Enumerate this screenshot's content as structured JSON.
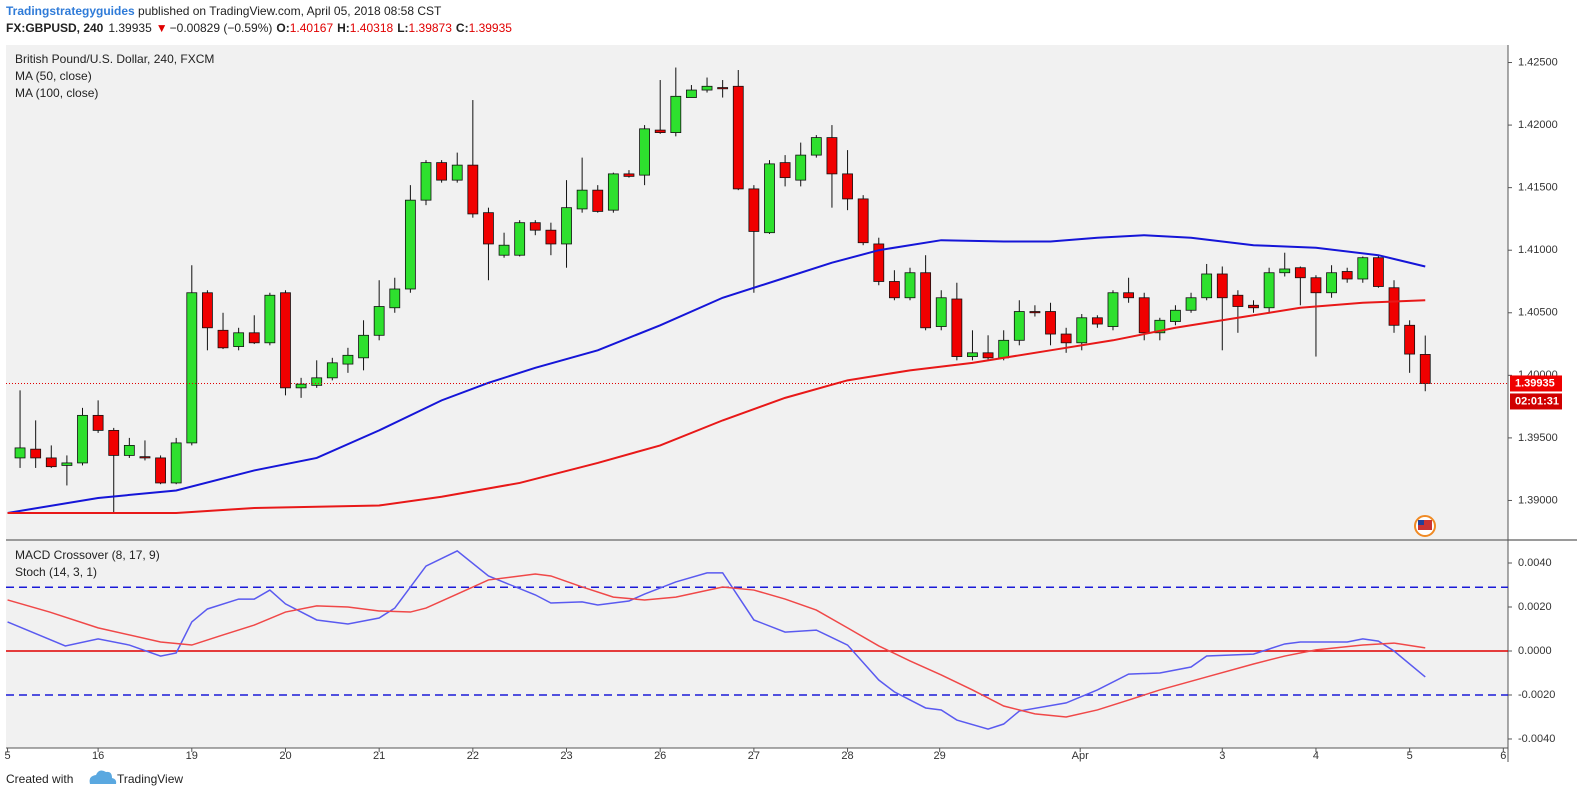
{
  "header": {
    "author": "Tradingstrategyguides",
    "published": " published on TradingView.com, April 05, 2018 08:58 CST",
    "symbol": "FX:GBPUSD, 240",
    "last": "1.39935",
    "arrow": "▼",
    "change": "−0.00829 (−0.59%)",
    "o_label": "O:",
    "o": "1.40167",
    "h_label": "H:",
    "h": "1.40318",
    "l_label": "L:",
    "l": "1.39873",
    "c_label": "C:",
    "c": "1.39935"
  },
  "footer": {
    "created": "Created with",
    "brand": "TradingView"
  },
  "chart_data": [
    {
      "type": "candlestick",
      "title": "British Pound/U.S. Dollar, 240, FXCM",
      "up_color": "#2ee02e",
      "down_color": "#f00000",
      "open": [
        1.3934,
        1.3941,
        1.3934,
        1.3928,
        1.393,
        1.3968,
        1.3956,
        1.3936,
        1.3935,
        1.3934,
        1.3914,
        1.3946,
        1.4066,
        1.4036,
        1.4023,
        1.4034,
        1.4026,
        1.4066,
        1.399,
        1.3992,
        1.3998,
        1.4009,
        1.4014,
        1.4032,
        1.4054,
        1.4069,
        1.414,
        1.417,
        1.4156,
        1.4168,
        1.413,
        1.4096,
        1.4096,
        1.4122,
        1.4116,
        1.4105,
        1.4133,
        1.4148,
        1.4132,
        1.4161,
        1.416,
        1.4196,
        1.4194,
        1.4222,
        1.4228,
        1.423,
        1.4231,
        1.4149,
        1.4114,
        1.417,
        1.4156,
        1.4176,
        1.419,
        1.4161,
        1.4141,
        1.4105,
        1.4075,
        1.4062,
        1.4082,
        1.4039,
        1.4061,
        1.4015,
        1.4018,
        1.4014,
        1.4028,
        1.4051,
        1.4051,
        1.4033,
        1.4026,
        1.4046,
        1.4039,
        1.4066,
        1.4062,
        1.4034,
        1.4043,
        1.4052,
        1.4062,
        1.4081,
        1.4064,
        1.4056,
        1.4054,
        1.4082,
        1.4086,
        1.4078,
        1.4066,
        1.4083,
        1.4077,
        1.4094,
        1.407,
        1.404,
        1.40167
      ],
      "high": [
        1.3988,
        1.3964,
        1.3944,
        1.3936,
        1.3974,
        1.398,
        1.3958,
        1.395,
        1.3948,
        1.3936,
        1.395,
        1.4088,
        1.4068,
        1.405,
        1.4038,
        1.4048,
        1.4066,
        1.4068,
        1.3998,
        1.4012,
        1.4014,
        1.4022,
        1.4044,
        1.4076,
        1.4078,
        1.4152,
        1.4172,
        1.4172,
        1.4178,
        1.422,
        1.4134,
        1.4114,
        1.4124,
        1.4124,
        1.4122,
        1.4156,
        1.4174,
        1.4152,
        1.4162,
        1.4164,
        1.42,
        1.4236,
        1.4246,
        1.4232,
        1.4238,
        1.4236,
        1.4244,
        1.4152,
        1.4172,
        1.4176,
        1.4186,
        1.4192,
        1.42,
        1.418,
        1.4144,
        1.411,
        1.4084,
        1.4086,
        1.4096,
        1.4068,
        1.4074,
        1.4036,
        1.4032,
        1.4036,
        1.406,
        1.4056,
        1.4058,
        1.4038,
        1.4049,
        1.4048,
        1.4068,
        1.4078,
        1.4066,
        1.4046,
        1.4056,
        1.4066,
        1.4089,
        1.4087,
        1.4068,
        1.406,
        1.4086,
        1.4098,
        1.4087,
        1.408,
        1.4088,
        1.4086,
        1.4095,
        1.4096,
        1.4076,
        1.4044,
        1.40318
      ],
      "low": [
        1.3926,
        1.3926,
        1.3926,
        1.3912,
        1.3928,
        1.3954,
        1.389,
        1.3934,
        1.3932,
        1.3913,
        1.3913,
        1.3944,
        1.402,
        1.4021,
        1.402,
        1.4025,
        1.4024,
        1.3984,
        1.3982,
        1.399,
        1.3996,
        1.4002,
        1.4004,
        1.4028,
        1.405,
        1.4066,
        1.4136,
        1.4154,
        1.4154,
        1.4126,
        1.4076,
        1.4094,
        1.4095,
        1.4112,
        1.4096,
        1.4086,
        1.413,
        1.413,
        1.413,
        1.4158,
        1.4152,
        1.4193,
        1.4191,
        1.4222,
        1.4226,
        1.4222,
        1.4148,
        1.4066,
        1.4113,
        1.4151,
        1.4151,
        1.4174,
        1.4134,
        1.4132,
        1.4104,
        1.4072,
        1.406,
        1.406,
        1.4036,
        1.4036,
        1.4012,
        1.4012,
        1.4012,
        1.4012,
        1.4024,
        1.4047,
        1.4024,
        1.4018,
        1.402,
        1.4038,
        1.4036,
        1.4058,
        1.4028,
        1.4028,
        1.404,
        1.405,
        1.406,
        1.402,
        1.4034,
        1.405,
        1.405,
        1.4079,
        1.4056,
        1.4015,
        1.4062,
        1.4074,
        1.4074,
        1.407,
        1.4034,
        1.4002,
        1.39873
      ],
      "close": [
        1.3942,
        1.3934,
        1.3927,
        1.393,
        1.3968,
        1.3956,
        1.3936,
        1.3944,
        1.3934,
        1.3914,
        1.3946,
        1.4066,
        1.4038,
        1.4022,
        1.4034,
        1.4026,
        1.4064,
        1.399,
        1.3993,
        1.3998,
        1.401,
        1.4016,
        1.4032,
        1.4055,
        1.4069,
        1.414,
        1.417,
        1.4156,
        1.4168,
        1.4129,
        1.4105,
        1.4104,
        1.4122,
        1.4116,
        1.4105,
        1.4134,
        1.4148,
        1.4131,
        1.4161,
        1.4159,
        1.4197,
        1.4194,
        1.4223,
        1.4228,
        1.4231,
        1.4229,
        1.4149,
        1.4115,
        1.4169,
        1.4158,
        1.4176,
        1.419,
        1.4161,
        1.4141,
        1.4106,
        1.4075,
        1.4062,
        1.4082,
        1.4038,
        1.4062,
        1.4015,
        1.4018,
        1.4014,
        1.4028,
        1.4051,
        1.405,
        1.4033,
        1.4026,
        1.4046,
        1.4041,
        1.4066,
        1.4062,
        1.4034,
        1.4044,
        1.4052,
        1.4062,
        1.4081,
        1.4062,
        1.4055,
        1.4054,
        1.4082,
        1.4085,
        1.4078,
        1.4066,
        1.4082,
        1.4077,
        1.4094,
        1.4071,
        1.404,
        1.4017,
        1.39935
      ],
      "series": [
        {
          "name": "MA (50, close)",
          "color": "#1515d8",
          "x": [
            -0.8,
            5,
            10,
            15,
            19,
            23,
            27,
            30,
            33,
            37,
            41,
            45,
            49,
            52,
            55,
            59,
            63,
            66,
            69,
            72,
            75,
            79,
            83,
            87,
            90
          ],
          "values": [
            1.389,
            1.3902,
            1.3908,
            1.3924,
            1.3934,
            1.3956,
            1.398,
            1.3994,
            1.4006,
            1.402,
            1.404,
            1.4062,
            1.4078,
            1.409,
            1.41,
            1.4108,
            1.4107,
            1.4107,
            1.411,
            1.4112,
            1.411,
            1.4104,
            1.4102,
            1.4096,
            1.4087
          ]
        },
        {
          "name": "MA (100, close)",
          "color": "#e81818",
          "x": [
            -0.8,
            10,
            15,
            23,
            27,
            32,
            37,
            41,
            45,
            49,
            53,
            57,
            61,
            66,
            70,
            74,
            78,
            82,
            86,
            90
          ],
          "values": [
            1.389,
            1.389,
            1.3894,
            1.3896,
            1.3903,
            1.3914,
            1.393,
            1.3944,
            1.3964,
            1.3982,
            1.3996,
            1.4004,
            1.401,
            1.402,
            1.4028,
            1.4038,
            1.4046,
            1.4054,
            1.4058,
            1.406
          ]
        }
      ],
      "last_price": 1.39935,
      "countdown": "02:01:31",
      "xlim": [
        -0.9,
        95.3
      ],
      "ylim": [
        1.387,
        1.4264
      ],
      "yticks": [
        {
          "value": 1.39,
          "label": "1.39000"
        },
        {
          "value": 1.395,
          "label": "1.39500"
        },
        {
          "value": 1.4,
          "label": "1.40000"
        },
        {
          "value": 1.405,
          "label": "1.40500"
        },
        {
          "value": 1.41,
          "label": "1.41000"
        },
        {
          "value": 1.415,
          "label": "1.41500"
        },
        {
          "value": 1.42,
          "label": "1.42000"
        },
        {
          "value": 1.425,
          "label": "1.42500"
        }
      ]
    },
    {
      "type": "line",
      "legend": [
        "MACD Crossover (8, 17, 9)",
        "Stoch (14, 3, 1)"
      ],
      "series": [
        {
          "color": "#5a5af0",
          "x": [
            -0.8,
            2.9,
            5,
            7,
            9,
            10,
            11,
            12,
            14,
            15,
            16,
            17,
            19,
            21,
            23,
            24,
            26,
            28,
            30,
            33,
            34,
            36,
            37,
            39,
            40,
            42,
            44,
            45,
            47,
            49,
            51,
            53,
            55,
            56,
            58,
            59,
            60,
            62,
            63,
            64,
            67,
            69,
            71,
            73,
            75,
            76,
            79,
            81,
            82,
            85,
            86,
            87,
            88,
            90
          ],
          "values": [
            0.00132,
            0.00023,
            0.00055,
            0.00027,
            -0.00023,
            -9e-05,
            0.00132,
            0.00191,
            0.00236,
            0.00236,
            0.00277,
            0.00214,
            0.00141,
            0.00123,
            0.0015,
            0.00195,
            0.00386,
            0.00455,
            0.00341,
            0.00255,
            0.00218,
            0.00223,
            0.00209,
            0.00227,
            0.00259,
            0.00314,
            0.00355,
            0.00355,
            0.00141,
            0.00086,
            0.00095,
            0.00027,
            -0.00132,
            -0.00186,
            -0.00259,
            -0.00268,
            -0.00314,
            -0.00355,
            -0.00332,
            -0.00273,
            -0.00236,
            -0.00177,
            -0.00105,
            -0.001,
            -0.00073,
            -0.00023,
            -0.00014,
            0.00032,
            0.00041,
            0.00041,
            0.00055,
            0.00045,
            0,
            -0.00118
          ]
        },
        {
          "color": "#f04848",
          "x": [
            -0.8,
            1.9,
            5,
            9,
            11,
            13,
            15,
            17,
            19,
            21,
            23,
            25,
            26,
            28,
            30,
            33,
            34,
            36,
            38,
            40,
            42,
            45,
            47,
            49,
            51,
            53,
            55,
            57,
            59,
            61,
            63,
            65,
            67,
            69,
            71,
            73,
            76,
            79,
            81,
            83,
            86,
            88,
            90
          ],
          "values": [
            0.00232,
            0.00177,
            0.00105,
            0.00041,
            0.00027,
            0.00073,
            0.00118,
            0.00177,
            0.00205,
            0.002,
            0.00182,
            0.00177,
            0.00195,
            0.00259,
            0.00323,
            0.0035,
            0.00341,
            0.00291,
            0.00245,
            0.00232,
            0.00245,
            0.00291,
            0.00277,
            0.00236,
            0.00186,
            0.00105,
            0.00023,
            -0.00045,
            -0.00109,
            -0.00177,
            -0.0025,
            -0.00286,
            -0.003,
            -0.00268,
            -0.00223,
            -0.00177,
            -0.00118,
            -0.00059,
            -0.00023,
            5e-05,
            0.00027,
            0.00036,
            0.00014
          ]
        }
      ],
      "hlines": [
        {
          "value": 0.0029,
          "color": "#1a1ad8",
          "style": "dashed"
        },
        {
          "value": 0,
          "color": "#e00000",
          "style": "solid"
        },
        {
          "value": -0.002,
          "color": "#1a1ad8",
          "style": "dashed"
        }
      ],
      "xlim": [
        -0.9,
        95.3
      ],
      "ylim": [
        -0.00441,
        0.005
      ],
      "yticks": [
        {
          "value": 0.004,
          "label": "0.0040"
        },
        {
          "value": 0.002,
          "label": "0.0020"
        },
        {
          "value": 0,
          "label": "0.0000"
        },
        {
          "value": -0.002,
          "label": "-0.0020"
        },
        {
          "value": -0.004,
          "label": "-0.0040"
        }
      ],
      "xticks": [
        {
          "value": -0.8,
          "label": "5"
        },
        {
          "value": 5,
          "label": "16"
        },
        {
          "value": 11,
          "label": "19"
        },
        {
          "value": 17,
          "label": "20"
        },
        {
          "value": 23,
          "label": "21"
        },
        {
          "value": 29,
          "label": "22"
        },
        {
          "value": 35,
          "label": "23"
        },
        {
          "value": 41,
          "label": "26"
        },
        {
          "value": 47,
          "label": "27"
        },
        {
          "value": 53,
          "label": "28"
        },
        {
          "value": 58.9,
          "label": "29"
        },
        {
          "value": 67.9,
          "label": "Apr"
        },
        {
          "value": 77,
          "label": "3"
        },
        {
          "value": 83,
          "label": "4"
        },
        {
          "value": 89,
          "label": "5"
        },
        {
          "value": 95,
          "label": "6"
        }
      ]
    }
  ]
}
